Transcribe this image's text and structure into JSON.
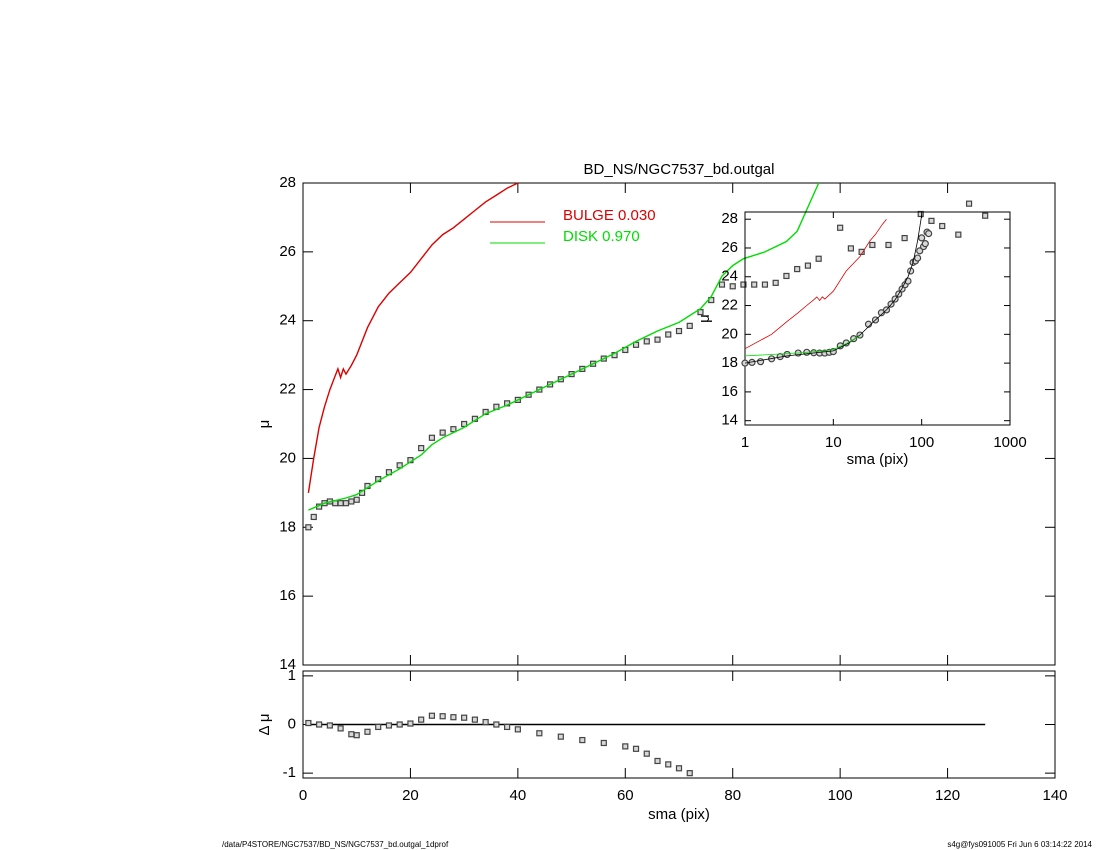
{
  "chart_data": [
    {
      "type": "line",
      "title": "BD_NS/NGC7537_bd.outgal",
      "ylabel": "μ",
      "xlim": [
        0,
        140
      ],
      "ylim": [
        14,
        28
      ],
      "yticks": [
        14,
        16,
        18,
        20,
        22,
        24,
        26,
        28
      ],
      "legend": "top",
      "series": [
        {
          "style": "markers",
          "marker": "square",
          "color": "#444444",
          "x": [
            1,
            2,
            3,
            4,
            5,
            6,
            7,
            8,
            9,
            10,
            11,
            12,
            14,
            16,
            18,
            20,
            22,
            24,
            26,
            28,
            30,
            32,
            34,
            36,
            38,
            40,
            42,
            44,
            46,
            48,
            50,
            52,
            54,
            56,
            58,
            60,
            62,
            64,
            66,
            68,
            70,
            72,
            74,
            76,
            78,
            80,
            82,
            84,
            86,
            88,
            90,
            92,
            94,
            96,
            100,
            102,
            104,
            106,
            109,
            112,
            115,
            117,
            119,
            122,
            124,
            127
          ],
          "values": [
            18.0,
            18.3,
            18.6,
            18.7,
            18.75,
            18.7,
            18.7,
            18.7,
            18.75,
            18.8,
            19.0,
            19.2,
            19.4,
            19.6,
            19.8,
            19.95,
            20.3,
            20.6,
            20.75,
            20.85,
            21.0,
            21.15,
            21.35,
            21.5,
            21.6,
            21.7,
            21.85,
            22.0,
            22.15,
            22.3,
            22.45,
            22.6,
            22.75,
            22.9,
            23.0,
            23.15,
            23.3,
            23.4,
            23.45,
            23.6,
            23.7,
            23.85,
            24.25,
            24.6,
            25.05,
            25.0,
            25.05,
            25.05,
            25.05,
            25.1,
            25.3,
            25.5,
            25.6,
            25.8,
            26.7,
            26.1,
            26.0,
            26.2,
            26.2,
            26.4,
            27.1,
            26.9,
            26.75,
            26.5,
            27.4,
            27.05
          ]
        },
        {
          "name": "BULGE  0.030",
          "style": "line",
          "color": "#dd0000",
          "x": [
            1,
            2,
            3,
            4,
            5,
            6,
            6.5,
            7,
            7.5,
            8,
            9,
            10,
            12,
            14,
            16,
            18,
            20,
            22,
            24,
            26,
            28,
            30,
            32,
            34,
            36,
            38,
            40
          ],
          "values": [
            19.0,
            20.0,
            20.9,
            21.5,
            22.0,
            22.4,
            22.6,
            22.35,
            22.6,
            22.45,
            22.7,
            23.0,
            23.8,
            24.4,
            24.8,
            25.1,
            25.4,
            25.8,
            26.2,
            26.5,
            26.7,
            26.95,
            27.2,
            27.45,
            27.65,
            27.85,
            28.0
          ]
        },
        {
          "name": "DISK  0.970",
          "style": "line",
          "color": "#00dd00",
          "x": [
            1,
            4,
            8,
            10,
            14,
            18,
            22,
            24,
            26,
            30,
            34,
            38,
            42,
            46,
            50,
            54,
            58,
            62,
            66,
            70,
            74,
            76,
            78,
            80,
            82,
            86,
            90,
            92,
            94,
            96
          ],
          "values": [
            18.5,
            18.7,
            18.85,
            18.95,
            19.35,
            19.7,
            20.1,
            20.4,
            20.6,
            20.9,
            21.3,
            21.55,
            21.85,
            22.15,
            22.45,
            22.75,
            23.05,
            23.4,
            23.7,
            23.95,
            24.35,
            24.7,
            25.3,
            25.6,
            25.8,
            26.0,
            26.3,
            26.6,
            27.3,
            28.0
          ]
        }
      ]
    },
    {
      "type": "line",
      "xlabel": "sma (pix)",
      "ylabel": "Δ μ",
      "xlim": [
        0,
        140
      ],
      "ylim": [
        -1.1,
        1.1
      ],
      "xticks": [
        0,
        20,
        40,
        60,
        80,
        100,
        120,
        140
      ],
      "yticks": [
        1,
        0,
        -1
      ],
      "series": [
        {
          "style": "line",
          "color": "#000000",
          "x": [
            1,
            127
          ],
          "values": [
            0,
            0
          ]
        },
        {
          "style": "markers",
          "marker": "square",
          "color": "#444444",
          "x": [
            1,
            3,
            5,
            7,
            9,
            10,
            12,
            14,
            16,
            18,
            20,
            22,
            24,
            26,
            28,
            30,
            32,
            34,
            36,
            38,
            40,
            44,
            48,
            52,
            56,
            60,
            62,
            64,
            66,
            68,
            70,
            72
          ],
          "values": [
            0.03,
            0.0,
            -0.02,
            -0.08,
            -0.2,
            -0.22,
            -0.15,
            -0.05,
            -0.02,
            0.0,
            0.02,
            0.1,
            0.18,
            0.17,
            0.15,
            0.14,
            0.1,
            0.05,
            0.0,
            -0.05,
            -0.1,
            -0.18,
            -0.25,
            -0.32,
            -0.38,
            -0.45,
            -0.5,
            -0.6,
            -0.75,
            -0.82,
            -0.9,
            -1.0
          ]
        }
      ]
    },
    {
      "type": "line",
      "xlabel": "sma (pix)",
      "ylabel": "μ",
      "xlog": true,
      "xlim": [
        1,
        1000
      ],
      "ylim": [
        13.7,
        28.5
      ],
      "xticks": [
        1,
        10,
        100,
        1000
      ],
      "yticks": [
        14,
        16,
        18,
        20,
        22,
        24,
        26,
        28
      ],
      "series": [
        {
          "style": "markers",
          "marker": "circle",
          "color": "#444444",
          "x": [
            1,
            1.2,
            1.5,
            2,
            2.5,
            3,
            4,
            5,
            6,
            7,
            8,
            9,
            10,
            12,
            14,
            17,
            20,
            25,
            30,
            35,
            40,
            45,
            50,
            55,
            60,
            65,
            70,
            75,
            80,
            85,
            90,
            95,
            100,
            105,
            110,
            115,
            120
          ],
          "values": [
            18.0,
            18.05,
            18.1,
            18.3,
            18.45,
            18.6,
            18.7,
            18.75,
            18.72,
            18.7,
            18.7,
            18.75,
            18.8,
            19.2,
            19.4,
            19.7,
            19.95,
            20.7,
            21.0,
            21.5,
            21.7,
            22.1,
            22.45,
            22.8,
            23.15,
            23.45,
            23.7,
            24.4,
            25.0,
            25.1,
            25.3,
            25.8,
            26.7,
            26.1,
            26.3,
            27.1,
            27.0
          ]
        },
        {
          "style": "line",
          "color": "#000000",
          "x": [
            1,
            3,
            6,
            10,
            15,
            20,
            30,
            40,
            50,
            60,
            70,
            80,
            90,
            100
          ],
          "values": [
            18.0,
            18.5,
            18.7,
            18.85,
            19.4,
            19.95,
            21.0,
            21.7,
            22.4,
            23.2,
            24.0,
            25.0,
            26.5,
            28.3
          ]
        },
        {
          "style": "line",
          "color": "#dd0000",
          "x": [
            1,
            2,
            3,
            4,
            5,
            6,
            6.5,
            7,
            7.5,
            8,
            10,
            14,
            20,
            26,
            30,
            36,
            40
          ],
          "values": [
            19.0,
            20.0,
            20.9,
            21.5,
            22.0,
            22.4,
            22.6,
            22.35,
            22.6,
            22.45,
            23.0,
            24.4,
            25.4,
            26.5,
            26.95,
            27.65,
            28.0
          ]
        },
        {
          "style": "line",
          "color": "#00dd00",
          "x": [
            1,
            4,
            8,
            10,
            14,
            20
          ],
          "values": [
            18.5,
            18.7,
            18.85,
            18.95,
            19.35,
            19.9
          ]
        }
      ]
    }
  ],
  "footer": {
    "left": "/data/P4STORE/NGC7537/BD_NS/NGC7537_bd.outgal_1dprof",
    "right": "s4g@fys091005  Fri Jun  6 03:14:22 2014"
  }
}
